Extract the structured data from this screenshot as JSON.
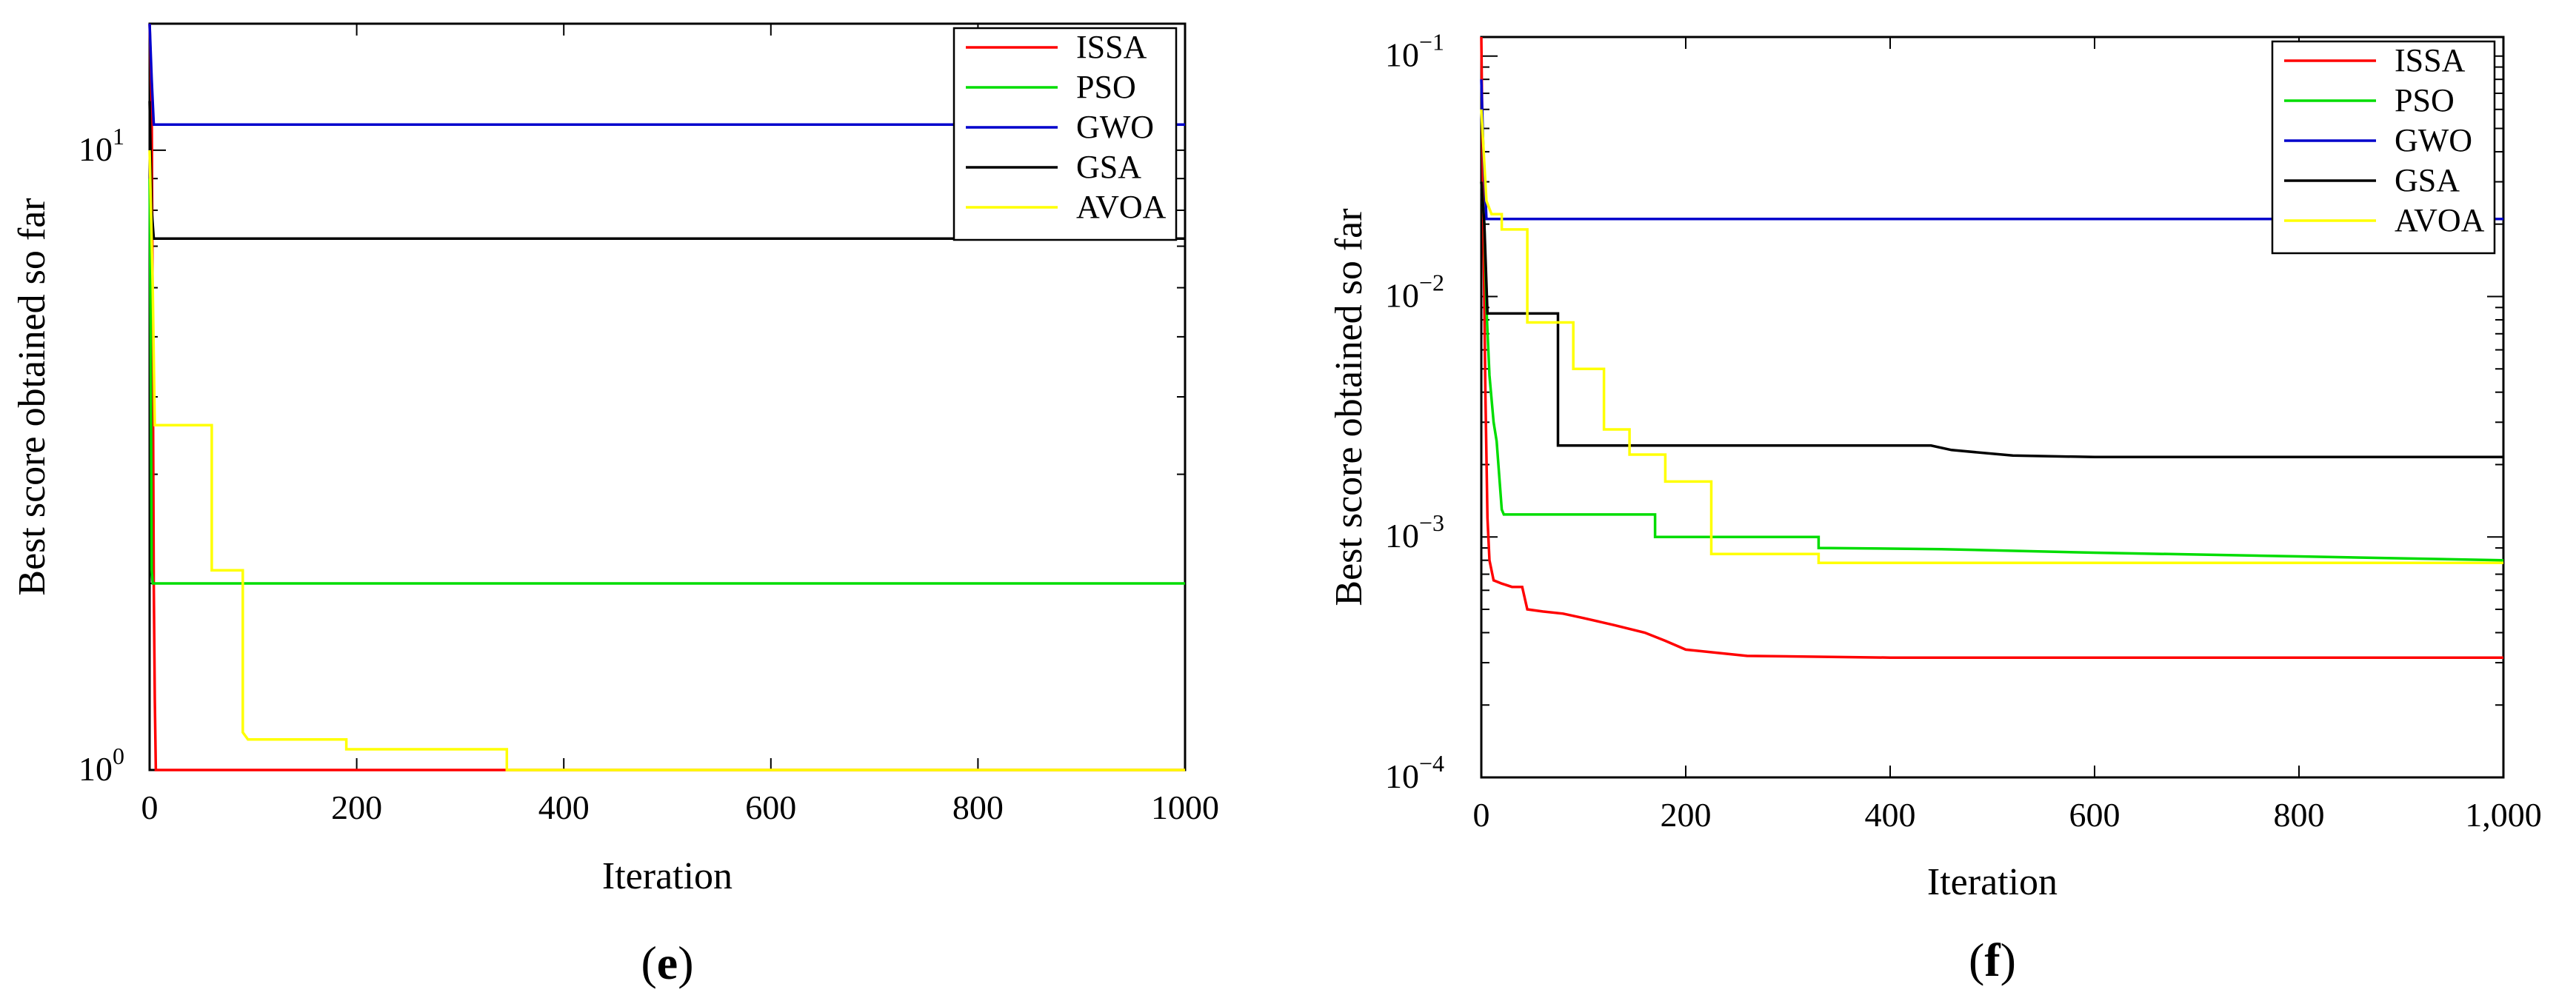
{
  "chart_data": [
    {
      "type": "line",
      "panel": "e",
      "panel_label": "e",
      "title": "",
      "xlabel": "Iteration",
      "ylabel": "Best score obtained so far",
      "yscale": "log",
      "xlim": [
        0,
        1000
      ],
      "ylim": [
        1,
        16
      ],
      "xticks": [
        0,
        200,
        400,
        600,
        800,
        1000
      ],
      "xtick_labels": [
        "0",
        "200",
        "400",
        "600",
        "800",
        "1000"
      ],
      "yticks": [
        {
          "value": 1,
          "base": "10",
          "exp": "0"
        },
        {
          "value": 10,
          "base": "10",
          "exp": "1"
        }
      ],
      "legend_position": "top-right",
      "series": [
        {
          "name": "ISSA",
          "color": "#ff0000",
          "points": [
            [
              0,
              16
            ],
            [
              2,
              12
            ],
            [
              3,
              5
            ],
            [
              4,
              2
            ],
            [
              5,
              1.3
            ],
            [
              6,
              1
            ],
            [
              1000,
              1
            ]
          ]
        },
        {
          "name": "PSO",
          "color": "#00dd00",
          "points": [
            [
              0,
              9
            ],
            [
              1,
              5
            ],
            [
              2,
              2.1
            ],
            [
              3,
              2
            ],
            [
              1000,
              2
            ]
          ]
        },
        {
          "name": "GWO",
          "color": "#0000cc",
          "points": [
            [
              0,
              16
            ],
            [
              2,
              13
            ],
            [
              4,
              11
            ],
            [
              1000,
              11
            ]
          ]
        },
        {
          "name": "GSA",
          "color": "#000000",
          "points": [
            [
              0,
              12
            ],
            [
              2,
              8
            ],
            [
              4,
              7.2
            ],
            [
              1000,
              7.2
            ]
          ]
        },
        {
          "name": "AVOA",
          "color": "#ffff00",
          "points": [
            [
              0,
              10
            ],
            [
              3,
              6
            ],
            [
              5,
              3.6
            ],
            [
              60,
              3.6
            ],
            [
              60,
              2.1
            ],
            [
              90,
              2.1
            ],
            [
              90,
              1.15
            ],
            [
              95,
              1.12
            ],
            [
              190,
              1.12
            ],
            [
              190,
              1.08
            ],
            [
              345,
              1.08
            ],
            [
              345,
              1.0
            ],
            [
              1000,
              1.0
            ]
          ]
        }
      ]
    },
    {
      "type": "line",
      "panel": "f",
      "panel_label": "f",
      "title": "",
      "xlabel": "Iteration",
      "ylabel": "Best score obtained so far",
      "yscale": "log",
      "xlim": [
        0,
        1000
      ],
      "ylim": [
        0.0001,
        0.12
      ],
      "xticks": [
        0,
        200,
        400,
        600,
        800,
        1000
      ],
      "xtick_labels": [
        "0",
        "200",
        "400",
        "600",
        "800",
        "1,000"
      ],
      "yticks": [
        {
          "value": 0.0001,
          "base": "10",
          "exp": "−4"
        },
        {
          "value": 0.001,
          "base": "10",
          "exp": "−3"
        },
        {
          "value": 0.01,
          "base": "10",
          "exp": "−2"
        },
        {
          "value": 0.1,
          "base": "10",
          "exp": "−1"
        }
      ],
      "legend_position": "top-right",
      "series": [
        {
          "name": "ISSA",
          "color": "#ff0000",
          "points": [
            [
              0,
              0.12
            ],
            [
              2,
              0.02
            ],
            [
              4,
              0.004
            ],
            [
              6,
              0.0012
            ],
            [
              8,
              0.0008
            ],
            [
              12,
              0.00066
            ],
            [
              20,
              0.00064
            ],
            [
              30,
              0.00062
            ],
            [
              40,
              0.00062
            ],
            [
              45,
              0.0005
            ],
            [
              60,
              0.00049
            ],
            [
              80,
              0.00048
            ],
            [
              100,
              0.00046
            ],
            [
              130,
              0.00043
            ],
            [
              160,
              0.0004
            ],
            [
              180,
              0.00037
            ],
            [
              200,
              0.00034
            ],
            [
              230,
              0.00033
            ],
            [
              260,
              0.00032
            ],
            [
              400,
              0.000315
            ],
            [
              1000,
              0.000315
            ]
          ]
        },
        {
          "name": "PSO",
          "color": "#00dd00",
          "points": [
            [
              0,
              0.03
            ],
            [
              3,
              0.02
            ],
            [
              5,
              0.009
            ],
            [
              8,
              0.0047
            ],
            [
              12,
              0.003
            ],
            [
              15,
              0.0025
            ],
            [
              20,
              0.0013
            ],
            [
              22,
              0.00124
            ],
            [
              170,
              0.00124
            ],
            [
              170,
              0.001
            ],
            [
              330,
              0.001
            ],
            [
              330,
              0.0009
            ],
            [
              450,
              0.00089
            ],
            [
              600,
              0.00086
            ],
            [
              800,
              0.00083
            ],
            [
              1000,
              0.0008
            ]
          ]
        },
        {
          "name": "GWO",
          "color": "#0000cc",
          "points": [
            [
              0,
              0.08
            ],
            [
              2,
              0.04
            ],
            [
              5,
              0.021
            ],
            [
              1000,
              0.021
            ]
          ]
        },
        {
          "name": "GSA",
          "color": "#000000",
          "points": [
            [
              0,
              0.03
            ],
            [
              3,
              0.02
            ],
            [
              6,
              0.0085
            ],
            [
              75,
              0.0085
            ],
            [
              75,
              0.0024
            ],
            [
              440,
              0.0024
            ],
            [
              460,
              0.0023
            ],
            [
              520,
              0.00218
            ],
            [
              600,
              0.00215
            ],
            [
              1000,
              0.00215
            ]
          ]
        },
        {
          "name": "AVOA",
          "color": "#ffff00",
          "points": [
            [
              0,
              0.06
            ],
            [
              5,
              0.025
            ],
            [
              10,
              0.022
            ],
            [
              20,
              0.022
            ],
            [
              20,
              0.019
            ],
            [
              45,
              0.019
            ],
            [
              45,
              0.0078
            ],
            [
              90,
              0.0078
            ],
            [
              90,
              0.005
            ],
            [
              120,
              0.005
            ],
            [
              120,
              0.0028
            ],
            [
              145,
              0.0028
            ],
            [
              145,
              0.0022
            ],
            [
              180,
              0.0022
            ],
            [
              180,
              0.0017
            ],
            [
              225,
              0.0017
            ],
            [
              225,
              0.00085
            ],
            [
              330,
              0.00085
            ],
            [
              330,
              0.00078
            ],
            [
              1000,
              0.00078
            ]
          ]
        }
      ]
    }
  ]
}
